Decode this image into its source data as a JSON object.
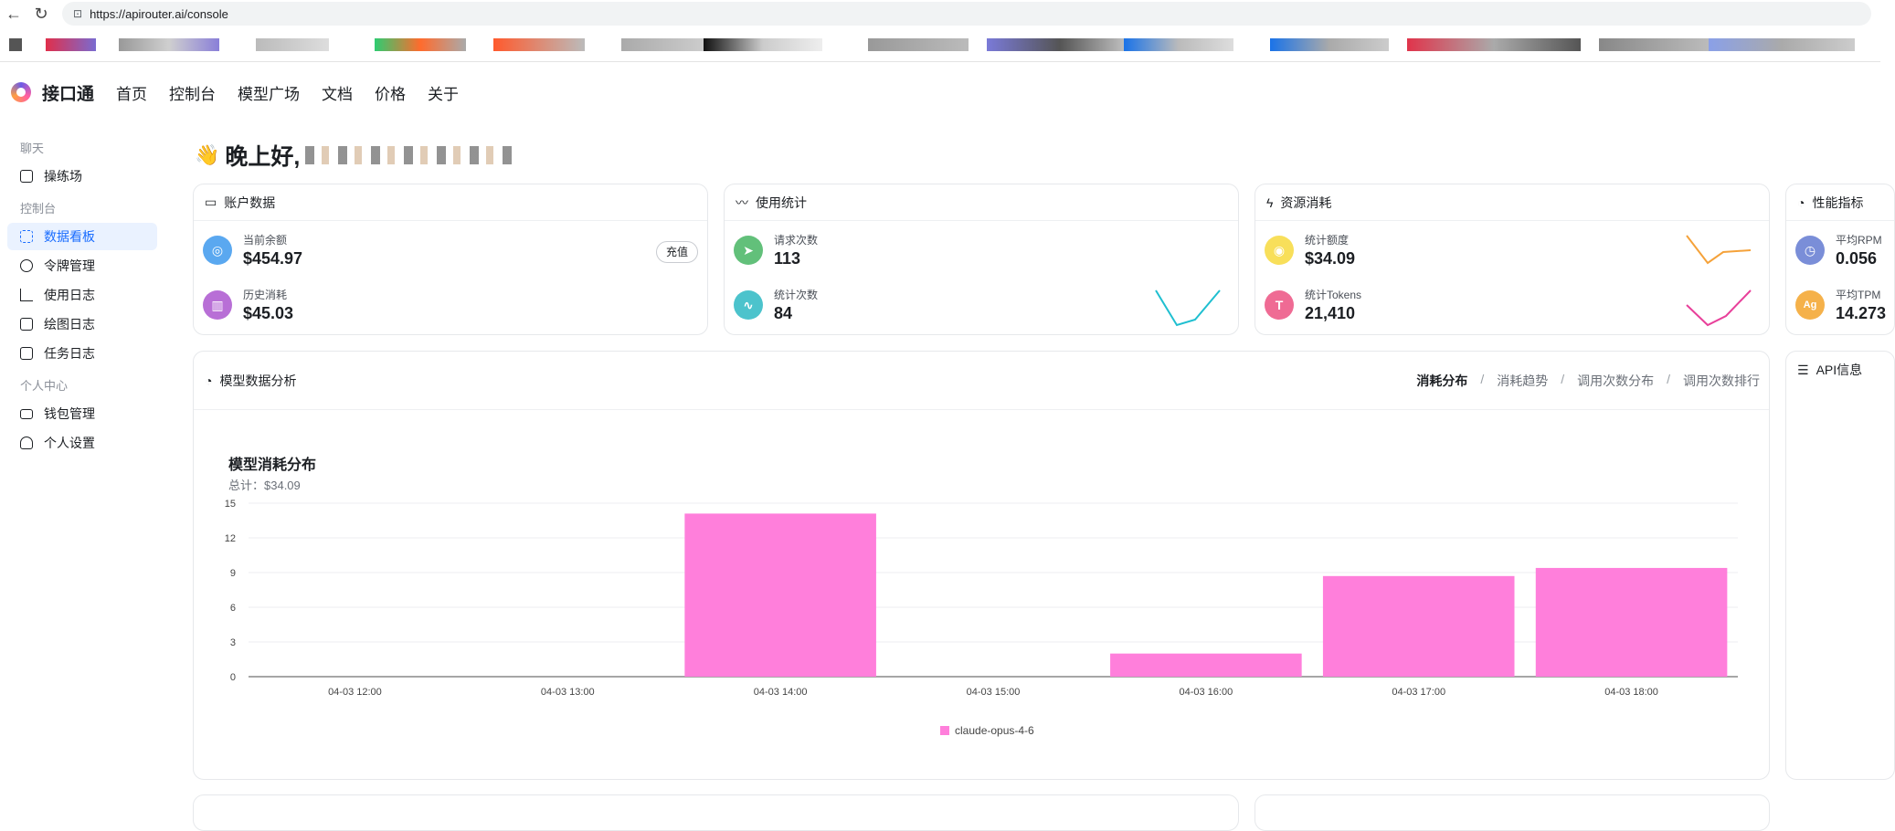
{
  "browser": {
    "url": "https://apirouter.ai/console"
  },
  "app": {
    "brand": "接口通",
    "nav": [
      "首页",
      "控制台",
      "模型广场",
      "文档",
      "价格",
      "关于"
    ]
  },
  "sidebar": {
    "groups": [
      {
        "title": "聊天",
        "items": [
          {
            "label": "操练场",
            "icon": "playground-icon"
          }
        ]
      },
      {
        "title": "控制台",
        "items": [
          {
            "label": "数据看板",
            "icon": "dashboard-icon",
            "active": true
          },
          {
            "label": "令牌管理",
            "icon": "key-icon"
          },
          {
            "label": "使用日志",
            "icon": "bar-chart-icon"
          },
          {
            "label": "绘图日志",
            "icon": "image-icon"
          },
          {
            "label": "任务日志",
            "icon": "checkbox-icon"
          }
        ]
      },
      {
        "title": "个人中心",
        "items": [
          {
            "label": "钱包管理",
            "icon": "wallet-icon"
          },
          {
            "label": "个人设置",
            "icon": "user-icon"
          }
        ]
      }
    ]
  },
  "greeting": "晚上好,",
  "cards": {
    "account": {
      "title": "账户数据",
      "balance_label": "当前余额",
      "balance": "$454.97",
      "recharge": "充值",
      "spent_label": "历史消耗",
      "spent": "$45.03"
    },
    "usage": {
      "title": "使用统计",
      "requests_label": "请求次数",
      "requests": "113",
      "count_label": "统计次数",
      "count": "84"
    },
    "resource": {
      "title": "资源消耗",
      "quota_label": "统计额度",
      "quota": "$34.09",
      "tokens_label": "统计Tokens",
      "tokens": "21,410"
    },
    "perf": {
      "title": "性能指标",
      "rpm_label": "平均RPM",
      "rpm": "0.056",
      "tpm_label": "平均TPM",
      "tpm": "14.273"
    },
    "api": {
      "title": "API信息"
    }
  },
  "analysis": {
    "title": "模型数据分析",
    "tabs": [
      "消耗分布",
      "消耗趋势",
      "调用次数分布",
      "调用次数排行"
    ],
    "active_tab": "消耗分布"
  },
  "colors": {
    "accent": "#1a6dff",
    "bar": "#ff7fdb"
  },
  "chart_data": {
    "type": "bar",
    "title": "模型消耗分布",
    "subtitle": "总计：$34.09",
    "categories": [
      "04-03 12:00",
      "04-03 13:00",
      "04-03 14:00",
      "04-03 15:00",
      "04-03 16:00",
      "04-03 17:00",
      "04-03 18:00"
    ],
    "series": [
      {
        "name": "claude-opus-4-6",
        "values": [
          0,
          0,
          14.1,
          0,
          2.0,
          8.7,
          9.4
        ]
      }
    ],
    "yticks": [
      0,
      3,
      6,
      9,
      12,
      15
    ],
    "ylim": [
      0,
      15
    ],
    "grid": true,
    "legend": "bottom"
  }
}
